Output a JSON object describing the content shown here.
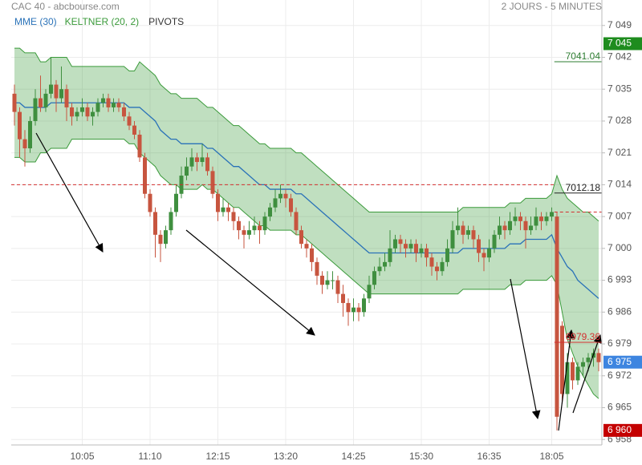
{
  "chart_data": {
    "type": "candlestick",
    "title": "CAC 40 - abcbourse.com",
    "subtitle": "2 JOURS - 5 MINUTES",
    "categories": [
      null,
      null,
      null,
      null,
      null,
      null,
      null,
      null,
      null,
      null,
      null,
      null,
      null,
      "10:05",
      null,
      null,
      null,
      null,
      null,
      null,
      null,
      null,
      null,
      null,
      null,
      null,
      "11:10",
      null,
      null,
      null,
      null,
      null,
      null,
      null,
      null,
      null,
      null,
      null,
      null,
      "12:15",
      null,
      null,
      null,
      null,
      null,
      null,
      null,
      null,
      null,
      null,
      null,
      null,
      "13:20",
      null,
      null,
      null,
      null,
      null,
      null,
      null,
      null,
      null,
      null,
      null,
      null,
      "14:25",
      null,
      null,
      null,
      null,
      null,
      null,
      null,
      null,
      null,
      null,
      null,
      null,
      "15:30",
      null,
      null,
      null,
      null,
      null,
      null,
      null,
      null,
      null,
      null,
      null,
      null,
      "16:35",
      null,
      null,
      null,
      null,
      null,
      null,
      null,
      null,
      null,
      null,
      null,
      "18:05",
      null,
      null,
      null,
      null,
      null,
      null,
      null,
      null,
      null
    ],
    "candles": [
      [
        7034,
        7036,
        7027,
        7030
      ],
      [
        7030,
        7031,
        7020,
        7024
      ],
      [
        7024,
        7026,
        7018,
        7022
      ],
      [
        7022,
        7029,
        7021,
        7028
      ],
      [
        7028,
        7035,
        7027,
        7033
      ],
      [
        7033,
        7038,
        7030,
        7031
      ],
      [
        7031,
        7035,
        7030,
        7034
      ],
      [
        7034,
        7042,
        7033,
        7036
      ],
      [
        7036,
        7037,
        7030,
        7033
      ],
      [
        7033,
        7040,
        7032,
        7035
      ],
      [
        7035,
        7036,
        7028,
        7031
      ],
      [
        7031,
        7032,
        7027,
        7029
      ],
      [
        7029,
        7031,
        7028,
        7030
      ],
      [
        7030,
        7033,
        7029,
        7031
      ],
      [
        7031,
        7032,
        7028,
        7029
      ],
      [
        7029,
        7031,
        7027,
        7030
      ],
      [
        7030,
        7033,
        7029,
        7032
      ],
      [
        7032,
        7034,
        7031,
        7033
      ],
      [
        7033,
        7034,
        7030,
        7031
      ],
      [
        7031,
        7033,
        7030,
        7032
      ],
      [
        7032,
        7033,
        7030,
        7031
      ],
      [
        7031,
        7032,
        7028,
        7029
      ],
      [
        7029,
        7030,
        7026,
        7027
      ],
      [
        7027,
        7028,
        7024,
        7025
      ],
      [
        7025,
        7026,
        7019,
        7020
      ],
      [
        7020,
        7021,
        7011,
        7012
      ],
      [
        7012,
        7013,
        7007,
        7008
      ],
      [
        7008,
        7009,
        6998,
        7003
      ],
      [
        7003,
        7004,
        6997,
        7001
      ],
      [
        7001,
        7005,
        7000,
        7004
      ],
      [
        7004,
        7009,
        7003,
        7008
      ],
      [
        7008,
        7014,
        7007,
        7012
      ],
      [
        7012,
        7018,
        7011,
        7016
      ],
      [
        7016,
        7020,
        7015,
        7018
      ],
      [
        7018,
        7022,
        7017,
        7020
      ],
      [
        7020,
        7021,
        7017,
        7019
      ],
      [
        7019,
        7023,
        7018,
        7020
      ],
      [
        7020,
        7021,
        7016,
        7017
      ],
      [
        7017,
        7018,
        7011,
        7012
      ],
      [
        7012,
        7013,
        7006,
        7008
      ],
      [
        7008,
        7011,
        7007,
        7009
      ],
      [
        7009,
        7010,
        7006,
        7008
      ],
      [
        7008,
        7009,
        7004,
        7006
      ],
      [
        7006,
        7007,
        7002,
        7004
      ],
      [
        7004,
        7005,
        7000,
        7003
      ],
      [
        7003,
        7006,
        7002,
        7004
      ],
      [
        7004,
        7007,
        7003,
        7005
      ],
      [
        7005,
        7006,
        7001,
        7004
      ],
      [
        7004,
        7008,
        7003,
        7007
      ],
      [
        7007,
        7010,
        7006,
        7009
      ],
      [
        7009,
        7013,
        7008,
        7011
      ],
      [
        7011,
        7014,
        7010,
        7012
      ],
      [
        7012,
        7013,
        7009,
        7011
      ],
      [
        7011,
        7012,
        7007,
        7008
      ],
      [
        7008,
        7009,
        7003,
        7004
      ],
      [
        7004,
        7005,
        7000,
        7001
      ],
      [
        7001,
        7002,
        6998,
        7000
      ],
      [
        7000,
        7001,
        6995,
        6997
      ],
      [
        6997,
        6998,
        6992,
        6994
      ],
      [
        6994,
        6995,
        6990,
        6992
      ],
      [
        6992,
        6995,
        6991,
        6993
      ],
      [
        6993,
        6995,
        6991,
        6993
      ],
      [
        6993,
        6994,
        6988,
        6990
      ],
      [
        6990,
        6992,
        6985,
        6988
      ],
      [
        6988,
        6989,
        6983,
        6986
      ],
      [
        6986,
        6989,
        6984,
        6987
      ],
      [
        6987,
        6988,
        6984,
        6986
      ],
      [
        6986,
        6990,
        6985,
        6989
      ],
      [
        6989,
        6994,
        6988,
        6992
      ],
      [
        6992,
        6996,
        6991,
        6995
      ],
      [
        6995,
        6998,
        6994,
        6996
      ],
      [
        6996,
        6999,
        6995,
        6997
      ],
      [
        6997,
        7004,
        6996,
        7000
      ],
      [
        7000,
        7003,
        6999,
        7002
      ],
      [
        7002,
        7003,
        6999,
        7001
      ],
      [
        7001,
        7002,
        6998,
        7000
      ],
      [
        7000,
        7002,
        6999,
        7001
      ],
      [
        7001,
        7002,
        6997,
        6999
      ],
      [
        6999,
        7001,
        6998,
        7000
      ],
      [
        7000,
        7001,
        6996,
        6998
      ],
      [
        6998,
        6999,
        6994,
        6996
      ],
      [
        6996,
        6997,
        6993,
        6995
      ],
      [
        6995,
        6998,
        6994,
        6997
      ],
      [
        6997,
        7002,
        6996,
        7000
      ],
      [
        7000,
        7006,
        6999,
        7004
      ],
      [
        7004,
        7009,
        7003,
        7005
      ],
      [
        7005,
        7006,
        7001,
        7003
      ],
      [
        7003,
        7005,
        7002,
        7004
      ],
      [
        7004,
        7005,
        7000,
        7002
      ],
      [
        7002,
        7003,
        6997,
        6999
      ],
      [
        6999,
        7000,
        6995,
        6998
      ],
      [
        6998,
        7002,
        6997,
        7000
      ],
      [
        7000,
        7004,
        6999,
        7003
      ],
      [
        7003,
        7007,
        7002,
        7005
      ],
      [
        7005,
        7006,
        7002,
        7004
      ],
      [
        7004,
        7008,
        7003,
        7006
      ],
      [
        7006,
        7009,
        7005,
        7007
      ],
      [
        7007,
        7008,
        7004,
        7006
      ],
      [
        7006,
        7007,
        7000,
        7004
      ],
      [
        7004,
        7007,
        7003,
        7005
      ],
      [
        7005,
        7009,
        7004,
        7007
      ],
      [
        7007,
        7008,
        7004,
        7006
      ],
      [
        7006,
        7008,
        7005,
        7007
      ],
      [
        7007,
        7009,
        7006,
        7008
      ],
      [
        7007,
        7008,
        6960,
        6963
      ],
      [
        6983,
        6984,
        6966,
        6968
      ],
      [
        6968,
        6977,
        6965,
        6975
      ],
      [
        6975,
        6976,
        6969,
        6971
      ],
      [
        6971,
        6975,
        6970,
        6974
      ],
      [
        6974,
        6976,
        6972,
        6975
      ],
      [
        6975,
        6977,
        6973,
        6976
      ],
      [
        6976,
        6978,
        6974,
        6977
      ],
      [
        6977,
        6978,
        6973,
        6975
      ]
    ],
    "up_color": "#3f8f3f",
    "down_color": "#c7553f",
    "series": [
      {
        "name": "MME (30)",
        "color": "#2a72b8",
        "values": [
          7032,
          7032,
          7031,
          7031,
          7031,
          7031,
          7031,
          7032,
          7032,
          7032,
          7032,
          7032,
          7032,
          7032,
          7032,
          7032,
          7032,
          7032,
          7032,
          7032,
          7032,
          7032,
          7031,
          7031,
          7031,
          7030,
          7029,
          7028,
          7026,
          7025,
          7024,
          7024,
          7023,
          7023,
          7023,
          7023,
          7023,
          7022,
          7022,
          7021,
          7020,
          7019,
          7018,
          7018,
          7017,
          7016,
          7015,
          7014,
          7014,
          7013,
          7013,
          7013,
          7013,
          7013,
          7012,
          7012,
          7011,
          7010,
          7009,
          7008,
          7007,
          7006,
          7005,
          7004,
          7003,
          7002,
          7001,
          7000,
          6999,
          6999,
          6999,
          6999,
          6999,
          6999,
          6999,
          6999,
          6999,
          6999,
          6999,
          6999,
          6999,
          6999,
          6999,
          6999,
          6999,
          6999,
          7000,
          7000,
          7000,
          7000,
          7000,
          7000,
          7000,
          7000,
          7000,
          7001,
          7001,
          7001,
          7002,
          7002,
          7002,
          7002,
          7002,
          7003,
          7000,
          6998,
          6996,
          6995,
          6993,
          6992,
          6991,
          6990,
          6989
        ]
      },
      {
        "name": "KELTNER (20, 2)",
        "color": "#3a9a3a",
        "upper": [
          7044,
          7044,
          7043,
          7043,
          7043,
          7041,
          7041,
          7042,
          7042,
          7042,
          7042,
          7040,
          7040,
          7040,
          7040,
          7040,
          7040,
          7040,
          7040,
          7040,
          7040,
          7040,
          7039,
          7039,
          7041,
          7040,
          7039,
          7038,
          7036,
          7035,
          7034,
          7034,
          7033,
          7033,
          7033,
          7033,
          7032,
          7031,
          7031,
          7030,
          7029,
          7028,
          7027,
          7027,
          7026,
          7025,
          7024,
          7023,
          7023,
          7022,
          7022,
          7022,
          7022,
          7022,
          7021,
          7021,
          7020,
          7019,
          7018,
          7017,
          7016,
          7015,
          7014,
          7013,
          7012,
          7011,
          7010,
          7009,
          7008,
          7008,
          7008,
          7008,
          7008,
          7008,
          7008,
          7008,
          7008,
          7008,
          7008,
          7008,
          7008,
          7008,
          7008,
          7008,
          7008,
          7008,
          7009,
          7009,
          7009,
          7009,
          7009,
          7009,
          7009,
          7009,
          7009,
          7010,
          7010,
          7010,
          7011,
          7011,
          7011,
          7011,
          7011,
          7012,
          7016,
          7013,
          7011,
          7010,
          7009,
          7008,
          7008,
          7007,
          7006
        ],
        "lower": [
          7020,
          7020,
          7019,
          7019,
          7019,
          7021,
          7021,
          7022,
          7022,
          7022,
          7022,
          7024,
          7024,
          7024,
          7024,
          7024,
          7024,
          7024,
          7024,
          7024,
          7024,
          7024,
          7023,
          7023,
          7021,
          7020,
          7019,
          7018,
          7016,
          7015,
          7014,
          7014,
          7013,
          7013,
          7013,
          7013,
          7014,
          7013,
          7013,
          7012,
          7011,
          7010,
          7009,
          7009,
          7008,
          7007,
          7006,
          7005,
          7005,
          7004,
          7004,
          7004,
          7004,
          7004,
          7003,
          7003,
          7002,
          7001,
          7000,
          6999,
          6998,
          6997,
          6996,
          6995,
          6994,
          6993,
          6992,
          6991,
          6990,
          6990,
          6990,
          6990,
          6990,
          6990,
          6990,
          6990,
          6990,
          6990,
          6990,
          6990,
          6990,
          6990,
          6990,
          6990,
          6990,
          6990,
          6991,
          6991,
          6991,
          6991,
          6991,
          6991,
          6991,
          6991,
          6991,
          6992,
          6992,
          6992,
          6993,
          6993,
          6993,
          6993,
          6993,
          6994,
          6992,
          6986,
          6980,
          6977,
          6974,
          6972,
          6970,
          6968,
          6967
        ]
      }
    ],
    "pivots": {
      "name": "PIVOTS",
      "color": "#333333",
      "levels": [
        {
          "value": 7041.04,
          "color": "#2e7d32"
        },
        {
          "value": 7012.18,
          "color": "#222222"
        },
        {
          "value": 6979.36,
          "color": "#d32f2f"
        }
      ],
      "dashed_levels": [
        7014,
        7008
      ]
    },
    "price_tags": [
      {
        "value": 7045,
        "label": "7 045",
        "color": "#1e8c1e"
      },
      {
        "value": 6975,
        "label": "6 975",
        "color": "#3d85e0"
      },
      {
        "value": 6960,
        "label": "6 960",
        "color": "#c40000"
      }
    ],
    "ylim": [
      6956.8,
      7054.6
    ],
    "yticks": [
      {
        "value": 7049,
        "label": "7 049"
      },
      {
        "value": 7042,
        "label": "7 042"
      },
      {
        "value": 7035,
        "label": "7 035"
      },
      {
        "value": 7028,
        "label": "7 028"
      },
      {
        "value": 7021,
        "label": "7 021"
      },
      {
        "value": 7014,
        "label": "7 014"
      },
      {
        "value": 7007,
        "label": "7 007"
      },
      {
        "value": 7000,
        "label": "7 000"
      },
      {
        "value": 6993,
        "label": "6 993"
      },
      {
        "value": 6986,
        "label": "6 986"
      },
      {
        "value": 6979,
        "label": "6 979"
      },
      {
        "value": 6972,
        "label": "6 972"
      },
      {
        "value": 6965,
        "label": "6 965"
      },
      {
        "value": 6958,
        "label": "6 958"
      }
    ],
    "grid": true
  }
}
